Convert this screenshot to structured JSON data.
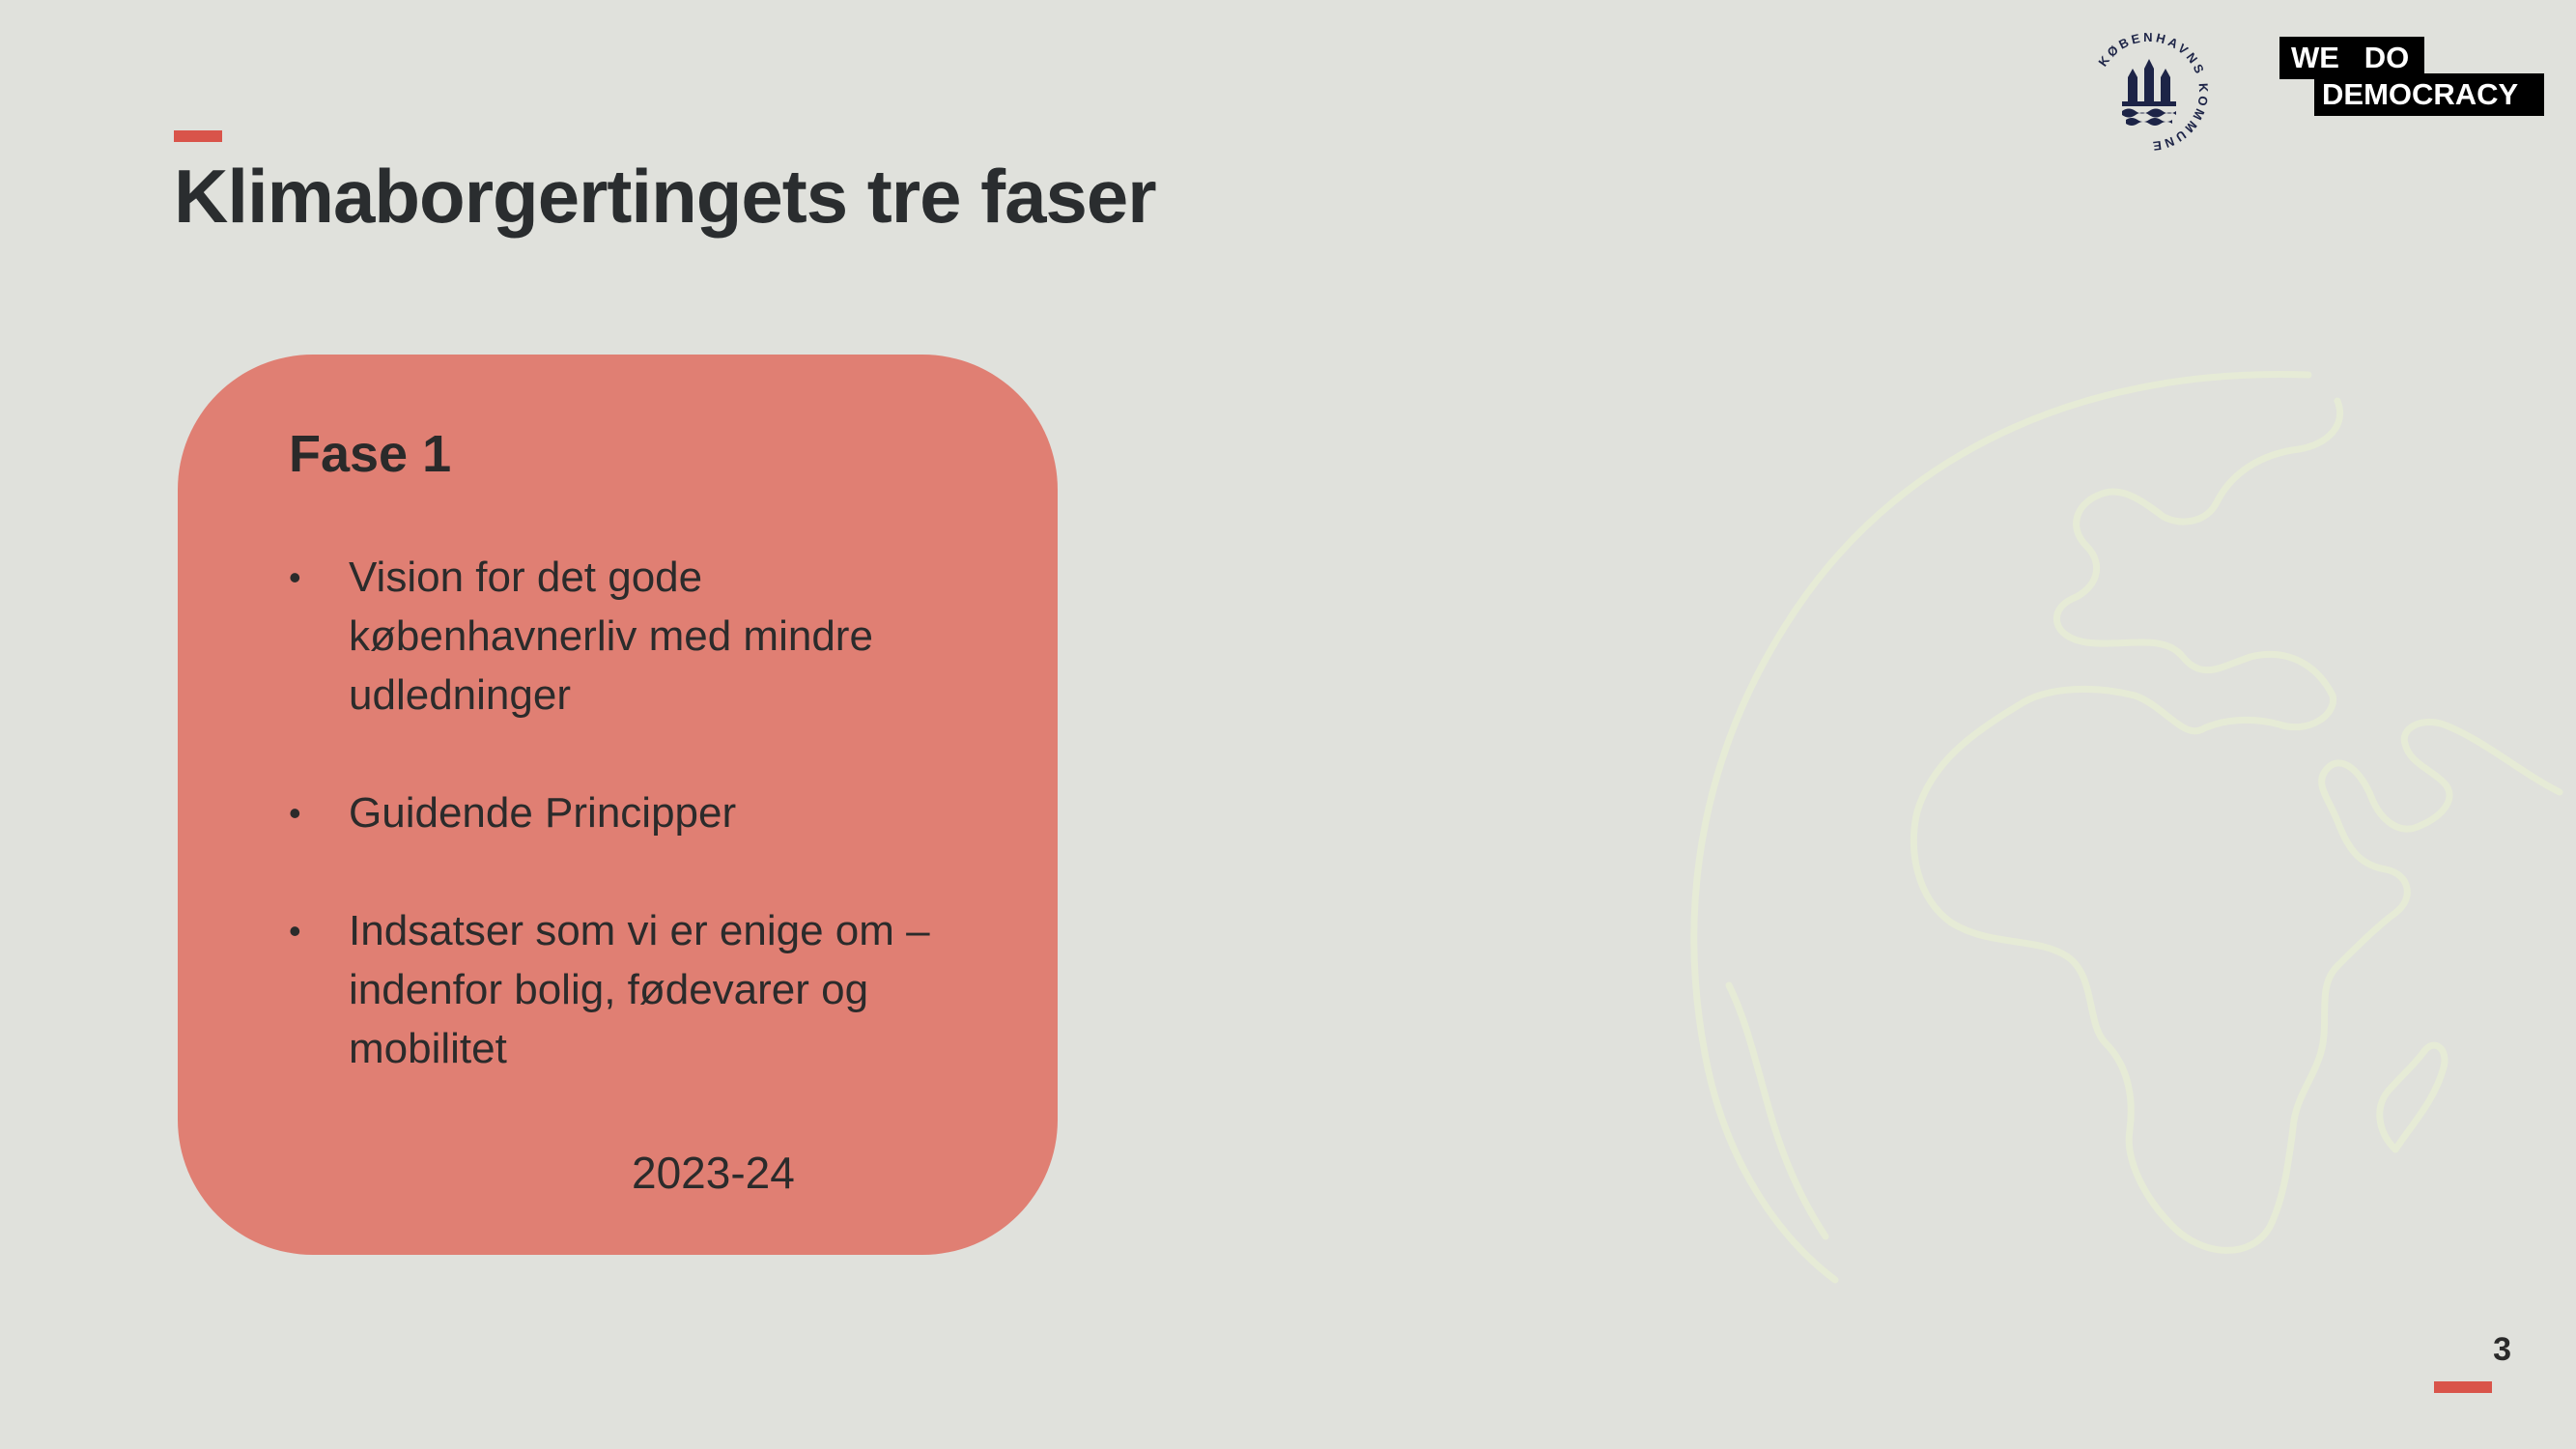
{
  "slide": {
    "title": "Klimaborgertingets tre faser",
    "page_number": "3"
  },
  "phase_card": {
    "title": "Fase 1",
    "bullets": [
      "Vision for det gode københavnerliv med mindre udledninger",
      "Guidende Principper",
      "Indsatser som vi er enige om – indenfor bolig, fødevarer og mobilitet"
    ],
    "period": "2023-24"
  },
  "logos": {
    "kobenhavns_kommune": "KØBENHAVNS KOMMUNE",
    "we_do_democracy_top": "WE   DO",
    "we_do_democracy_bottom": "DEMOCRACY"
  },
  "colors": {
    "background": "#e0e1dc",
    "accent": "#d9544a",
    "card": "#e07f73",
    "globe_line": "#e6ebd6"
  },
  "icons": {
    "globe": "globe-outline-icon",
    "coat_of_arms": "copenhagen-coat-of-arms-icon"
  }
}
